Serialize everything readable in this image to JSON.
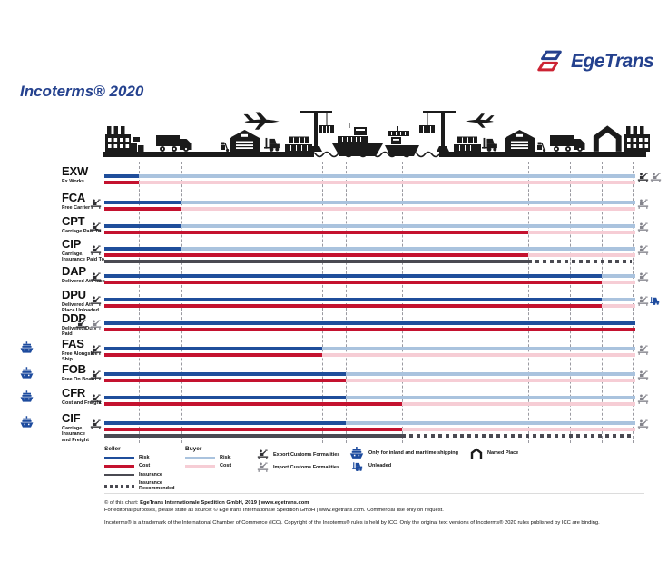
{
  "brand": {
    "name": "EgeTrans"
  },
  "title": "Incoterms® 2020",
  "colors": {
    "brand_blue": "#24418e",
    "brand_red": "#cc2333",
    "seller_risk": "#1f4e9b",
    "seller_cost": "#c4122f",
    "insurance": "#4a4a52",
    "buyer_risk": "#aac3de",
    "buyer_cost": "#f6cdd5",
    "icon_black": "#1b1b1b",
    "icon_blue": "#1d4b9e",
    "export_dark": "#2f2f33",
    "import_gray": "#84848c"
  },
  "timeline": {
    "start": 115,
    "end": 700,
    "dash_end": 696,
    "gridlines": [
      153,
      199,
      355,
      381,
      443,
      582,
      628,
      663,
      697
    ]
  },
  "transport_chain": [
    "factory",
    "cargo-boxes",
    "truck",
    "plane",
    "hand-truck",
    "warehouse",
    "forklift",
    "container-stack",
    "crane",
    "ship",
    "ship",
    "crane",
    "container-stack",
    "forklift",
    "warehouse",
    "hand-truck",
    "truck",
    "plane",
    "named-place-shed",
    "buyer-building"
  ],
  "rows": [
    {
      "code": "EXW",
      "name_lines": [
        "Ex Works"
      ],
      "maritime_only": false,
      "left_icons": [],
      "right_icons": [
        "export-customs",
        "import-customs"
      ],
      "risk": 153,
      "cost": 153,
      "insurance": null,
      "insurance_recommended": false,
      "seller_full": false
    },
    {
      "code": "FCA",
      "name_lines": [
        "Free Carrier"
      ],
      "maritime_only": false,
      "left_icons": [
        "export-customs"
      ],
      "right_icons": [
        "import-customs"
      ],
      "risk": 199,
      "cost": 199,
      "insurance": null,
      "insurance_recommended": false,
      "seller_full": false
    },
    {
      "code": "CPT",
      "name_lines": [
        "Carriage Paid To"
      ],
      "maritime_only": false,
      "left_icons": [
        "export-customs"
      ],
      "right_icons": [
        "import-customs"
      ],
      "risk": 199,
      "cost": 582,
      "insurance": null,
      "insurance_recommended": false,
      "seller_full": false
    },
    {
      "code": "CIP",
      "name_lines": [
        "Carriage,",
        "Insurance Paid To"
      ],
      "maritime_only": false,
      "left_icons": [
        "export-customs"
      ],
      "right_icons": [
        "import-customs"
      ],
      "risk": 199,
      "cost": 582,
      "insurance": 582,
      "insurance_recommended": true,
      "seller_full": false
    },
    {
      "code": "DAP",
      "name_lines": [
        "Delivered At Place"
      ],
      "maritime_only": false,
      "left_icons": [
        "export-customs"
      ],
      "right_icons": [
        "import-customs"
      ],
      "risk": 663,
      "cost": 663,
      "insurance": null,
      "insurance_recommended": false,
      "seller_full": false
    },
    {
      "code": "DPU",
      "name_lines": [
        "Delivered At",
        "Place Unloaded"
      ],
      "maritime_only": false,
      "left_icons": [
        "export-customs"
      ],
      "right_icons": [
        "import-customs",
        "unloaded"
      ],
      "risk": 663,
      "cost": 663,
      "insurance": null,
      "insurance_recommended": false,
      "seller_full": false
    },
    {
      "code": "DDP",
      "name_lines": [
        "Delivered Duty Paid"
      ],
      "maritime_only": false,
      "left_icons": [
        "export-customs",
        "import-customs"
      ],
      "right_icons": [],
      "risk": 700,
      "cost": 700,
      "insurance": null,
      "insurance_recommended": false,
      "seller_full": true
    },
    {
      "code": "FAS",
      "name_lines": [
        "Free Alongside Ship"
      ],
      "maritime_only": true,
      "left_icons": [
        "export-customs"
      ],
      "right_icons": [
        "import-customs"
      ],
      "risk": 355,
      "cost": 355,
      "insurance": null,
      "insurance_recommended": false,
      "seller_full": false
    },
    {
      "code": "FOB",
      "name_lines": [
        "Free On Board"
      ],
      "maritime_only": true,
      "left_icons": [
        "export-customs"
      ],
      "right_icons": [
        "import-customs"
      ],
      "risk": 381,
      "cost": 381,
      "insurance": null,
      "insurance_recommended": false,
      "seller_full": false
    },
    {
      "code": "CFR",
      "name_lines": [
        "Cost and Freight"
      ],
      "maritime_only": true,
      "left_icons": [
        "export-customs"
      ],
      "right_icons": [
        "import-customs"
      ],
      "risk": 381,
      "cost": 443,
      "insurance": null,
      "insurance_recommended": false,
      "seller_full": false
    },
    {
      "code": "CIF",
      "name_lines": [
        "Carriage, Insurance",
        "and Freight"
      ],
      "maritime_only": true,
      "left_icons": [
        "export-customs"
      ],
      "right_icons": [
        "import-customs"
      ],
      "risk": 381,
      "cost": 443,
      "insurance": 443,
      "insurance_recommended": true,
      "seller_full": false
    }
  ],
  "legend": {
    "seller": {
      "title": "Seller",
      "items": [
        {
          "kind": "seller-risk",
          "label": "Risk"
        },
        {
          "kind": "seller-cost",
          "label": "Cost"
        },
        {
          "kind": "insurance",
          "label": "Insurance"
        },
        {
          "kind": "insurance-recommended",
          "label": "Insurance Recommended"
        }
      ]
    },
    "buyer": {
      "title": "Buyer",
      "items": [
        {
          "kind": "buyer-risk",
          "label": "Risk"
        },
        {
          "kind": "buyer-cost",
          "label": "Cost"
        }
      ]
    },
    "icons": [
      {
        "icon": "export-customs-icon",
        "label": "Export Customs Formalities"
      },
      {
        "icon": "import-customs-icon",
        "label": "Import Customs Formalities"
      },
      {
        "icon": "ship-icon",
        "label": "Only for inland and maritime shipping"
      },
      {
        "icon": "unloaded-forklift-icon",
        "label": "Unloaded"
      },
      {
        "icon": "named-place-icon",
        "label": "Named Place"
      }
    ]
  },
  "footer": {
    "line1_prefix": "© of this chart: ",
    "line1_bold": "EgeTrans Internationale Spedition GmbH, 2019 | www.egetrans.com",
    "line2": "For editorial purposes, please state as source: © EgeTrans Internationale Spedition GmbH | www.egetrans.com. Commercial use only on request.",
    "line3": "Incoterms® is a trademark of the International Chamber of Commerce (ICC). Copyright of the Incoterms® rules is held by ICC. Only the original text versions of Incoterms® 2020 rules published by ICC are binding."
  }
}
